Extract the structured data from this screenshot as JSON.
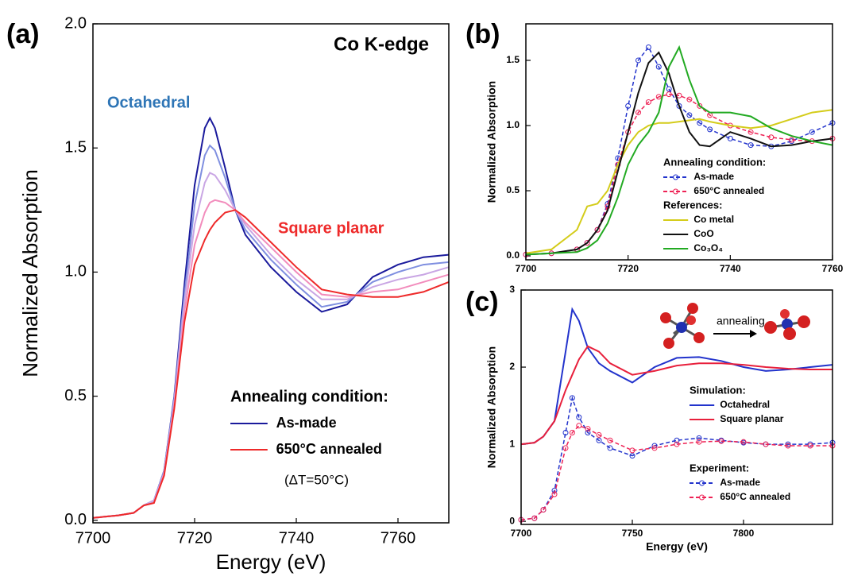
{
  "chart_data": [
    {
      "type": "line",
      "label": "(a)",
      "title": "Co K-edge",
      "xlabel": "Energy (eV)",
      "ylabel": "Normalized Absorption",
      "x": [
        7700,
        7705,
        7708,
        7710,
        7712,
        7714,
        7716,
        7718,
        7720,
        7722,
        7723,
        7724,
        7726,
        7728,
        7730,
        7735,
        7740,
        7745,
        7750,
        7755,
        7760,
        7765,
        7770
      ],
      "xlim": [
        7700,
        7770
      ],
      "xticks": [
        7700,
        7720,
        7740,
        7760
      ],
      "ylim": [
        -0.01,
        2.0
      ],
      "yticks": [
        {
          "value": 0,
          "label": "0.0"
        },
        0.5,
        {
          "value": 1,
          "label": "1.0"
        },
        1.5,
        {
          "value": 2,
          "label": "2.0"
        }
      ],
      "legend_title": "Annealing condition:",
      "series": [
        {
          "name": "As-made",
          "color": "#1a1a9c",
          "values": [
            0.01,
            0.02,
            0.03,
            0.06,
            0.08,
            0.2,
            0.5,
            0.95,
            1.35,
            1.58,
            1.62,
            1.58,
            1.42,
            1.25,
            1.15,
            1.02,
            0.92,
            0.84,
            0.87,
            0.98,
            1.03,
            1.06,
            1.07
          ]
        },
        {
          "color": "#7f8fe0",
          "values": [
            0.01,
            0.02,
            0.03,
            0.06,
            0.08,
            0.2,
            0.49,
            0.91,
            1.27,
            1.47,
            1.51,
            1.49,
            1.38,
            1.25,
            1.17,
            1.05,
            0.95,
            0.86,
            0.88,
            0.96,
            1.0,
            1.03,
            1.04
          ]
        },
        {
          "color": "#c9a6e4",
          "values": [
            0.01,
            0.02,
            0.03,
            0.06,
            0.08,
            0.19,
            0.48,
            0.88,
            1.19,
            1.36,
            1.4,
            1.39,
            1.33,
            1.25,
            1.19,
            1.07,
            0.97,
            0.89,
            0.89,
            0.94,
            0.97,
            0.99,
            1.02
          ]
        },
        {
          "color": "#f28cbc",
          "values": [
            0.01,
            0.02,
            0.03,
            0.06,
            0.07,
            0.19,
            0.46,
            0.84,
            1.11,
            1.24,
            1.28,
            1.29,
            1.28,
            1.25,
            1.2,
            1.1,
            1.0,
            0.91,
            0.9,
            0.92,
            0.93,
            0.96,
            0.99
          ]
        },
        {
          "name": "650°C annealed",
          "color": "#ee2a2a",
          "values": [
            0.01,
            0.02,
            0.03,
            0.06,
            0.07,
            0.18,
            0.45,
            0.8,
            1.03,
            1.13,
            1.17,
            1.2,
            1.24,
            1.25,
            1.22,
            1.12,
            1.02,
            0.93,
            0.91,
            0.9,
            0.9,
            0.92,
            0.96
          ]
        }
      ],
      "annotations": [
        {
          "text": "Octahedral",
          "color": "#2e75b6"
        },
        {
          "text": "Square planar",
          "color": "#ee2a2a"
        },
        {
          "text": "(ΔT=50°C)"
        }
      ]
    },
    {
      "type": "line",
      "label": "(b)",
      "ylabel": "Normalized Absorption",
      "x": [
        7700,
        7705,
        7710,
        7712,
        7714,
        7716,
        7718,
        7720,
        7722,
        7724,
        7726,
        7728,
        7730,
        7732,
        7734,
        7736,
        7740,
        7744,
        7748,
        7752,
        7756,
        7760
      ],
      "xlim": [
        7700,
        7760
      ],
      "xticks": [
        7700,
        7720,
        7740,
        7760
      ],
      "ylim": [
        -0.03,
        1.78
      ],
      "yticks": [
        {
          "value": 0,
          "label": "0.0"
        },
        0.5,
        {
          "value": 1,
          "label": "1.0"
        },
        1.5
      ],
      "series_groups": [
        {
          "title": "Annealing condition:",
          "series": [
            {
              "name": "As-made",
              "color": "#2233cc",
              "marker": "circle",
              "dashed": true,
              "values": [
                0.01,
                0.02,
                0.05,
                0.1,
                0.2,
                0.4,
                0.75,
                1.15,
                1.5,
                1.6,
                1.45,
                1.28,
                1.15,
                1.08,
                1.02,
                0.97,
                0.9,
                0.85,
                0.84,
                0.88,
                0.95,
                1.02
              ]
            },
            {
              "name": "650°C annealed",
              "color": "#ee2255",
              "marker": "circle",
              "dashed": true,
              "values": [
                0.01,
                0.02,
                0.05,
                0.1,
                0.2,
                0.38,
                0.7,
                0.95,
                1.1,
                1.18,
                1.22,
                1.24,
                1.23,
                1.2,
                1.15,
                1.08,
                1.0,
                0.95,
                0.91,
                0.89,
                0.88,
                0.9
              ]
            }
          ]
        },
        {
          "title": "References:",
          "series": [
            {
              "name": "Co metal",
              "color": "#d4cc1a",
              "values": [
                0.02,
                0.05,
                0.2,
                0.38,
                0.4,
                0.5,
                0.7,
                0.85,
                0.95,
                1.0,
                1.02,
                1.02,
                1.03,
                1.04,
                1.05,
                1.03,
                1.0,
                0.98,
                1.0,
                1.05,
                1.1,
                1.12
              ]
            },
            {
              "name": "CoO",
              "color": "#111111",
              "values": [
                0.01,
                0.02,
                0.05,
                0.1,
                0.2,
                0.35,
                0.65,
                0.95,
                1.25,
                1.48,
                1.56,
                1.4,
                1.15,
                0.95,
                0.85,
                0.84,
                0.95,
                0.9,
                0.84,
                0.85,
                0.88,
                0.9
              ]
            },
            {
              "name": "Co₃O₄",
              "color": "#22aa22",
              "values": [
                0.01,
                0.02,
                0.03,
                0.06,
                0.12,
                0.25,
                0.45,
                0.7,
                0.85,
                0.95,
                1.1,
                1.45,
                1.6,
                1.35,
                1.15,
                1.1,
                1.1,
                1.07,
                0.98,
                0.92,
                0.88,
                0.85
              ]
            }
          ]
        }
      ]
    },
    {
      "type": "line",
      "label": "(c)",
      "xlabel": "Energy (eV)",
      "ylabel": "Normalized Absorption",
      "x": [
        7700,
        7706,
        7710,
        7715,
        7720,
        7723,
        7726,
        7730,
        7735,
        7740,
        7750,
        7760,
        7770,
        7780,
        7790,
        7800,
        7810,
        7820,
        7830,
        7840
      ],
      "xlim": [
        7700,
        7840
      ],
      "xticks": [
        7700,
        7750,
        7800
      ],
      "ylim": [
        -0.04,
        3
      ],
      "yticks": [
        0,
        1,
        2,
        3
      ],
      "series_groups": [
        {
          "title": "Simulation:",
          "series": [
            {
              "name": "Octahedral",
              "color": "#2233cc",
              "values": [
                1.0,
                1.02,
                1.1,
                1.3,
                2.2,
                2.75,
                2.6,
                2.25,
                2.05,
                1.95,
                1.8,
                2.0,
                2.12,
                2.13,
                2.08,
                2.0,
                1.95,
                1.97,
                2.0,
                2.03
              ]
            },
            {
              "name": "Square planar",
              "color": "#e8203c",
              "values": [
                1.0,
                1.02,
                1.1,
                1.3,
                1.7,
                1.9,
                2.1,
                2.27,
                2.2,
                2.05,
                1.9,
                1.95,
                2.02,
                2.05,
                2.05,
                2.03,
                2.0,
                1.98,
                1.97,
                1.97
              ]
            }
          ]
        },
        {
          "title": "Experiment:",
          "series": [
            {
              "name": "As-made",
              "color": "#2233cc",
              "marker": "circle",
              "dashed": true,
              "values": [
                0.02,
                0.04,
                0.15,
                0.4,
                1.15,
                1.6,
                1.35,
                1.15,
                1.05,
                0.95,
                0.85,
                0.98,
                1.05,
                1.08,
                1.05,
                1.02,
                1.0,
                1.0,
                1.0,
                1.02
              ]
            },
            {
              "name": "650°C annealed",
              "color": "#ee2255",
              "marker": "circle",
              "dashed": true,
              "values": [
                0.02,
                0.04,
                0.15,
                0.35,
                0.95,
                1.15,
                1.24,
                1.2,
                1.12,
                1.05,
                0.92,
                0.95,
                1.0,
                1.03,
                1.04,
                1.03,
                1.0,
                0.98,
                0.98,
                0.98
              ]
            }
          ]
        }
      ],
      "annotations": [
        {
          "text": "annealing"
        }
      ]
    }
  ]
}
